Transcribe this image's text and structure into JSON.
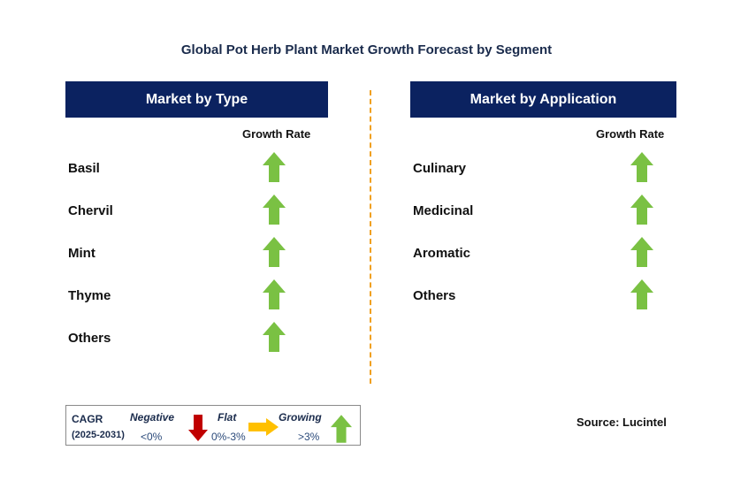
{
  "title": "Global Pot Herb Plant Market Growth Forecast by Segment",
  "colors": {
    "header_bg": "#0b2260",
    "growing_arrow": "#7ac143",
    "negative_arrow": "#c00000",
    "flat_arrow": "#ffc000",
    "divider": "#f0a020"
  },
  "type_panel": {
    "header": "Market by Type",
    "column_label": "Growth Rate",
    "rows": [
      {
        "label": "Basil",
        "trend": "growing"
      },
      {
        "label": "Chervil",
        "trend": "growing"
      },
      {
        "label": "Mint",
        "trend": "growing"
      },
      {
        "label": "Thyme",
        "trend": "growing"
      },
      {
        "label": "Others",
        "trend": "growing"
      }
    ]
  },
  "application_panel": {
    "header": "Market by Application",
    "column_label": "Growth Rate",
    "rows": [
      {
        "label": "Culinary",
        "trend": "growing"
      },
      {
        "label": "Medicinal",
        "trend": "growing"
      },
      {
        "label": "Aromatic",
        "trend": "growing"
      },
      {
        "label": "Others",
        "trend": "growing"
      }
    ]
  },
  "legend": {
    "cagr_label": "CAGR",
    "period": "(2025-2031)",
    "negative_label": "Negative",
    "negative_range": "<0%",
    "flat_label": "Flat",
    "flat_range": "0%-3%",
    "growing_label": "Growing",
    "growing_range": ">3%"
  },
  "source": "Source: Lucintel"
}
